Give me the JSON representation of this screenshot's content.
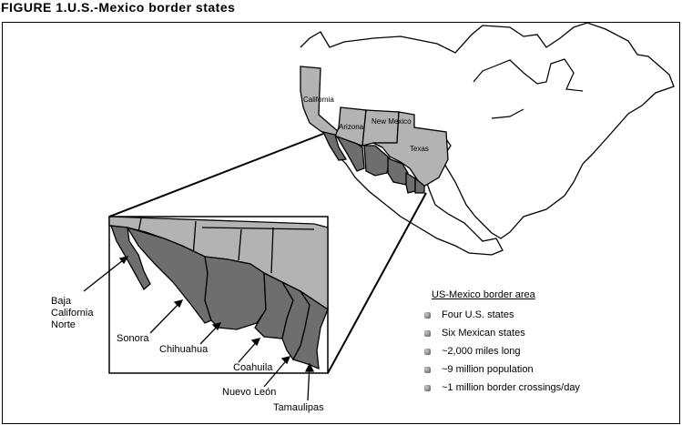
{
  "title": "FIGURE 1.U.S.-Mexico border states",
  "map": {
    "us_states": [
      "California",
      "Arizona",
      "New Mexico",
      "Texas"
    ],
    "mexican_states": [
      "Baja California Norte",
      "Sonora",
      "Chihuahua",
      "Coahuila",
      "Nuevo León",
      "Tamaulipas"
    ],
    "colors": {
      "us_border_states": "#b3b3b3",
      "mexican_border_states": "#6e6e6e",
      "outline": "#000000"
    }
  },
  "inset_labels": {
    "baja": "Baja California Norte",
    "sonora": "Sonora",
    "chihuahua": "Chihuahua",
    "coahuila": "Coahuila",
    "nuevo_leon": "Nuevo León",
    "tamaulipas": "Tamaulipas"
  },
  "legend": {
    "heading": "US-Mexico border area",
    "items": [
      "Four U.S. states",
      "Six Mexican states",
      "~2,000 miles long",
      "~9 million population",
      "~1 million border crossings/day"
    ]
  }
}
